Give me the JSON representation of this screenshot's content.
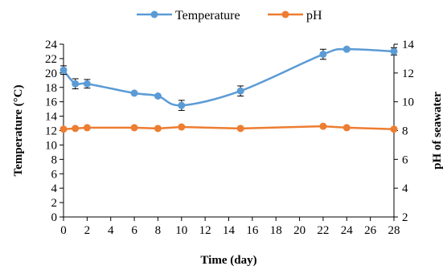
{
  "chart_data": {
    "type": "line",
    "title": "",
    "xlabel": "Time (day)",
    "ylabel_left": "Temperature (°C)",
    "ylabel_right": "pH of seawater",
    "xlim": [
      0,
      28
    ],
    "xticks": [
      "0",
      "2",
      "4",
      "6",
      "8",
      "10",
      "12",
      "14",
      "16",
      "18",
      "20",
      "22",
      "24",
      "26",
      "28"
    ],
    "ylim_left": [
      0,
      24
    ],
    "yticks_left": [
      "0",
      "2",
      "4",
      "6",
      "8",
      "10",
      "12",
      "14",
      "16",
      "18",
      "20",
      "22",
      "24"
    ],
    "ylim_right": [
      2,
      14
    ],
    "yticks_right": [
      "2",
      "4",
      "6",
      "8",
      "10",
      "12",
      "14"
    ],
    "grid": false,
    "legend_position": "top",
    "series": [
      {
        "name": "Temperature",
        "axis": "left",
        "color": "#5B9BD5",
        "smooth": true,
        "x": [
          0,
          1,
          2,
          6,
          8,
          10,
          15,
          22,
          24,
          28
        ],
        "y": [
          20.4,
          18.5,
          18.5,
          17.2,
          16.8,
          15.5,
          17.5,
          22.6,
          23.3,
          23.0
        ],
        "error": [
          0.6,
          0.7,
          0.6,
          0.0,
          0.0,
          0.7,
          0.7,
          0.7,
          0.2,
          0.5
        ]
      },
      {
        "name": "pH",
        "axis": "right",
        "color": "#ED7D31",
        "smooth": false,
        "x": [
          0,
          1,
          2,
          6,
          8,
          10,
          15,
          22,
          24,
          28
        ],
        "y": [
          8.1,
          8.15,
          8.2,
          8.2,
          8.15,
          8.25,
          8.15,
          8.3,
          8.2,
          8.1
        ],
        "error": [
          0,
          0,
          0,
          0,
          0,
          0,
          0,
          0,
          0,
          0
        ]
      }
    ]
  }
}
